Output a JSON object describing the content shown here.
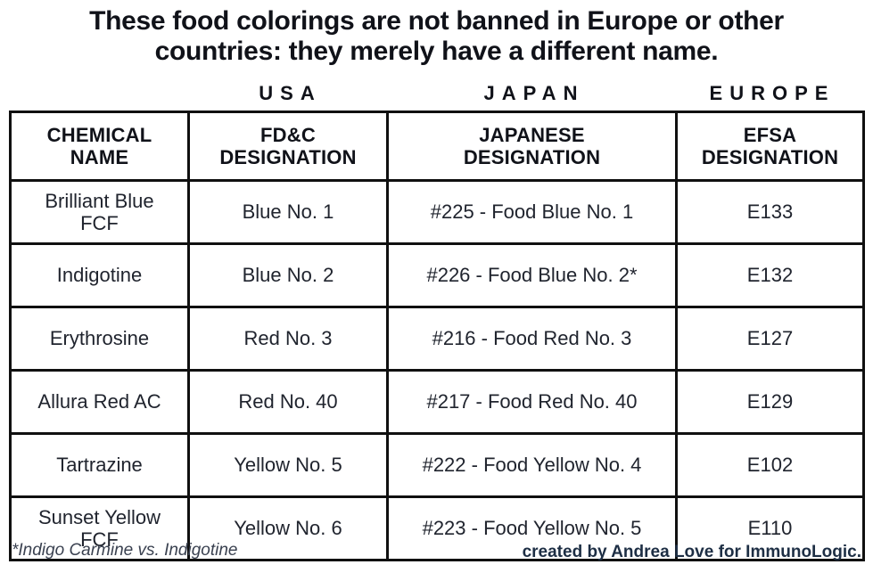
{
  "title": "These food colorings are not banned in Europe or other countries: they merely have a different name.",
  "chart_data": {
    "type": "table",
    "title": "These food colorings are not banned in Europe or other countries: they merely have a different name.",
    "region_groups": [
      {
        "label": "USA"
      },
      {
        "label": "JAPAN"
      },
      {
        "label": "EUROPE"
      }
    ],
    "columns": [
      {
        "label": "CHEMICAL NAME",
        "line1": "CHEMICAL",
        "line2": "NAME"
      },
      {
        "label": "FD&C DESIGNATION",
        "line1": "FD&C",
        "line2": "DESIGNATION"
      },
      {
        "label": "JAPANESE DESIGNATION",
        "line1": "JAPANESE",
        "line2": "DESIGNATION"
      },
      {
        "label": "EFSA DESIGNATION",
        "line1": "EFSA",
        "line2": "DESIGNATION"
      }
    ],
    "rows": [
      {
        "chemical": "Brilliant Blue FCF",
        "fdc": "Blue No. 1",
        "japanese": "#225 - Food Blue No. 1",
        "efsa": "E133"
      },
      {
        "chemical": "Indigotine",
        "fdc": "Blue No. 2",
        "japanese": "#226 - Food Blue No. 2*",
        "efsa": "E132"
      },
      {
        "chemical": "Erythrosine",
        "fdc": "Red No. 3",
        "japanese": "#216 - Food Red No. 3",
        "efsa": "E127"
      },
      {
        "chemical": "Allura Red AC",
        "fdc": "Red No. 40",
        "japanese": "#217 - Food Red No. 40",
        "efsa": "E129"
      },
      {
        "chemical": "Tartrazine",
        "fdc": "Yellow No. 5",
        "japanese": "#222 - Food Yellow No. 4",
        "efsa": "E102"
      },
      {
        "chemical": "Sunset Yellow FCF",
        "fdc": "Yellow No. 6",
        "japanese": "#223 - Food Yellow No. 5",
        "efsa": "E110"
      }
    ]
  },
  "footnote": "*Indigo Carmine vs. Indigotine",
  "credit": "created by Andrea Love for ImmunoLogic.",
  "colors": {
    "background": "#ffffff",
    "title_text": "#101219",
    "body_text": "#20242e",
    "border": "#101010",
    "credit_text": "#1d2e44",
    "footnote_text": "#3a4150"
  }
}
